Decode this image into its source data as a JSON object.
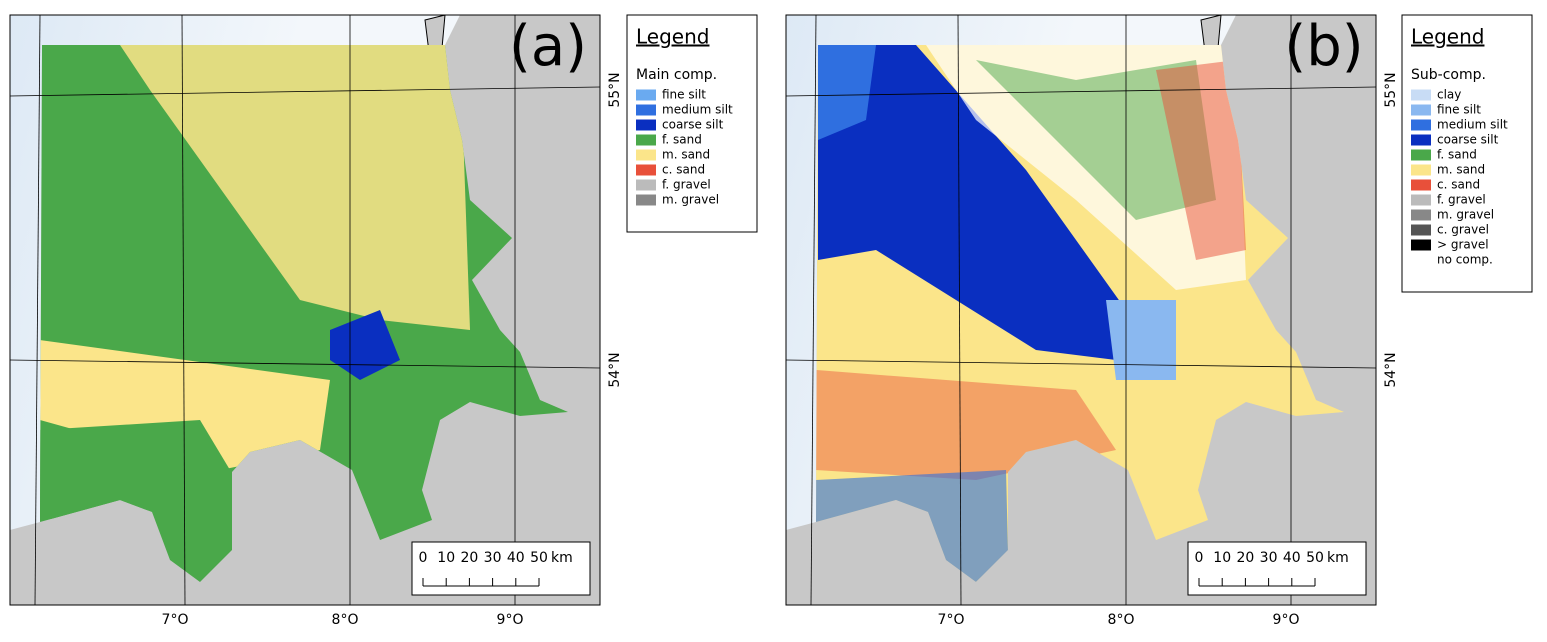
{
  "panels": [
    {
      "label": "(a)",
      "legend": {
        "title": "Legend",
        "heading": "Main comp.",
        "items": [
          {
            "name": "fine silt",
            "color": "#6aaaf0"
          },
          {
            "name": "medium silt",
            "color": "#2f6fe0"
          },
          {
            "name": "coarse silt",
            "color": "#0a2fc0"
          },
          {
            "name": "f. sand",
            "color": "#4aa84a"
          },
          {
            "name": "m. sand",
            "color": "#fbe58a"
          },
          {
            "name": "c. sand",
            "color": "#e8503a"
          },
          {
            "name": "f. gravel",
            "color": "#bbbbbb"
          },
          {
            "name": "m. gravel",
            "color": "#888888"
          }
        ]
      }
    },
    {
      "label": "(b)",
      "legend": {
        "title": "Legend",
        "heading": "Sub-comp.",
        "items": [
          {
            "name": "clay",
            "color": "#c8dcf5"
          },
          {
            "name": "fine silt",
            "color": "#8ab8f0"
          },
          {
            "name": "medium silt",
            "color": "#2f6fe0"
          },
          {
            "name": "coarse silt",
            "color": "#0a2fc0"
          },
          {
            "name": "f. sand",
            "color": "#4aa84a"
          },
          {
            "name": "m. sand",
            "color": "#fbe58a"
          },
          {
            "name": "c. sand",
            "color": "#e8503a"
          },
          {
            "name": "f. gravel",
            "color": "#bbbbbb"
          },
          {
            "name": "m. gravel",
            "color": "#888888"
          },
          {
            "name": "c. gravel",
            "color": "#555555"
          },
          {
            "name": "> gravel",
            "color": "#000000"
          },
          {
            "name": "no comp.",
            "color": "#ffffff"
          }
        ]
      }
    }
  ],
  "lon_labels": [
    "7°O",
    "8°O",
    "9°O"
  ],
  "lat_labels": [
    "55°N",
    "54°N"
  ],
  "scale_bar": {
    "ticks": [
      "0",
      "10",
      "20",
      "30",
      "40",
      "50"
    ],
    "unit": "km"
  }
}
